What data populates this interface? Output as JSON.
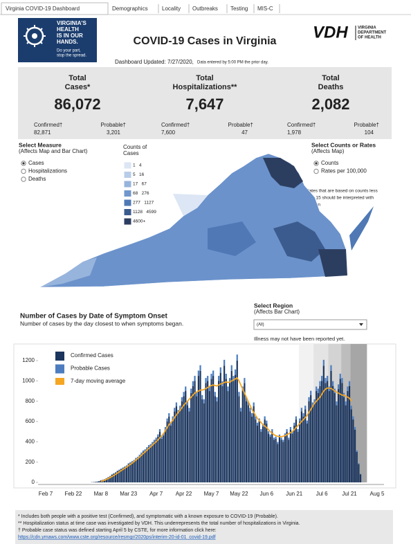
{
  "tabs": [
    "Virginia COVID-19 Dashboard",
    "Demographics",
    "Locality",
    "Outbreaks",
    "Testing",
    "MIS-C"
  ],
  "header": {
    "logo_lines": [
      "VIRGINIA'S",
      "HEALTH",
      "IS IN OUR",
      "HANDS."
    ],
    "logo_tagline": [
      "Do your part,",
      "stop the spread."
    ],
    "title": "COVID-19 Cases in Virginia",
    "vdh": "VDH",
    "vdh_name": [
      "VIRGINIA",
      "DEPARTMENT",
      "OF HEALTH"
    ],
    "updated": "Dashboard Updated: 7/27/2020,",
    "updated_note": "Data entered by 5:00 PM the prior day."
  },
  "summary": [
    {
      "title_lines": [
        "Total",
        "Cases*"
      ],
      "total": "86,072",
      "confirmed_label": "Confirmed†",
      "confirmed": "82,871",
      "probable_label": "Probable†",
      "probable": "3,201"
    },
    {
      "title_lines": [
        "Total",
        "Hospitalizations**"
      ],
      "total": "7,647",
      "confirmed_label": "Confirmed†",
      "confirmed": "7,600",
      "probable_label": "Probable†",
      "probable": "47"
    },
    {
      "title_lines": [
        "Total",
        "Deaths"
      ],
      "total": "2,082",
      "confirmed_label": "Confirmed†",
      "confirmed": "1,978",
      "probable_label": "Probable†",
      "probable": "104"
    }
  ],
  "measure": {
    "title": "Select Measure",
    "subtitle": "(Affects Map and Bar Chart)",
    "options": [
      "Cases",
      "Hospitalizations",
      "Deaths"
    ],
    "selected": 0
  },
  "rate": {
    "title": "Select Counts or Rates",
    "subtitle": "(Affects Map)",
    "options": [
      "Counts",
      "Rates per 100,000"
    ],
    "selected": 0,
    "note_lines": [
      "Rates that are based on counts less",
      "than 15 should be interpreted with",
      "caution"
    ]
  },
  "map_legend": {
    "title_lines": [
      "Counts of",
      "Cases"
    ],
    "bins": [
      {
        "label": "1   4",
        "color": "#dce6f4"
      },
      {
        "label": "5   16",
        "color": "#b9cde9"
      },
      {
        "label": "17   67",
        "color": "#97b4dc"
      },
      {
        "label": "68   276",
        "color": "#7197cc"
      },
      {
        "label": "277   1127",
        "color": "#4f78b5"
      },
      {
        "label": "1128   4599",
        "color": "#3b5b8e"
      },
      {
        "label": "4600+",
        "color": "#2c3e60"
      }
    ]
  },
  "region": {
    "title": "Select Region",
    "subtitle": "(Affects Bar Chart)",
    "value": "(All)"
  },
  "chart_data": {
    "type": "bar",
    "stacked": true,
    "title": "Number of Cases by Date of Symptom Onset",
    "subtitle": "Number of cases by the day closest to when symptoms began.",
    "annotation": "Illness may not have been reported yet.",
    "categories": [
      "Feb 7",
      null,
      null,
      null,
      null,
      null,
      null,
      null,
      null,
      null,
      null,
      null,
      null,
      null,
      null,
      "Feb 22",
      null,
      null,
      null,
      null,
      null,
      null,
      null,
      null,
      null,
      null,
      null,
      null,
      null,
      null,
      "Mar 8",
      null,
      null,
      null,
      null,
      null,
      null,
      null,
      null,
      null,
      null,
      null,
      null,
      null,
      null,
      "Mar 23",
      null,
      null,
      null,
      null,
      null,
      null,
      null,
      null,
      null,
      null,
      null,
      null,
      null,
      null,
      "Apr 7",
      null,
      null,
      null,
      null,
      null,
      null,
      null,
      null,
      null,
      null,
      null,
      null,
      null,
      null,
      "Apr 22",
      null,
      null,
      null,
      null,
      null,
      null,
      null,
      null,
      null,
      null,
      null,
      null,
      null,
      null,
      "May 7",
      null,
      null,
      null,
      null,
      null,
      null,
      null,
      null,
      null,
      null,
      null,
      null,
      null,
      null,
      "May 22",
      null,
      null,
      null,
      null,
      null,
      null,
      null,
      null,
      null,
      null,
      null,
      null,
      null,
      null,
      "Jun 6",
      null,
      null,
      null,
      null,
      null,
      null,
      null,
      null,
      null,
      null,
      null,
      null,
      null,
      null,
      "Jun 21",
      null,
      null,
      null,
      null,
      null,
      null,
      null,
      null,
      null,
      null,
      null,
      null,
      null,
      null,
      "Jul 6",
      null,
      null,
      null,
      null,
      null,
      null,
      null,
      null,
      null,
      null,
      null,
      null,
      null,
      null,
      "Jul 21",
      null,
      null,
      null,
      null,
      null,
      null,
      null,
      null,
      null,
      null,
      null,
      null,
      null,
      null,
      "Aug 5"
    ],
    "series": [
      {
        "name": "Confirmed Cases",
        "color": "#1b355e",
        "values": [
          0,
          0,
          0,
          0,
          0,
          0,
          0,
          0,
          0,
          0,
          0,
          0,
          0,
          0,
          0,
          0,
          0,
          0,
          0,
          0,
          0,
          0,
          0,
          0,
          0,
          2,
          3,
          5,
          8,
          12,
          20,
          25,
          30,
          40,
          50,
          60,
          75,
          85,
          95,
          110,
          120,
          130,
          140,
          150,
          160,
          180,
          190,
          200,
          210,
          230,
          240,
          260,
          280,
          300,
          310,
          330,
          350,
          360,
          380,
          400,
          420,
          450,
          500,
          430,
          460,
          520,
          600,
          650,
          560,
          620,
          700,
          750,
          680,
          720,
          800,
          850,
          900,
          760,
          700,
          880,
          950,
          1000,
          850,
          1050,
          1100,
          820,
          780,
          980,
          1000,
          900,
          1020,
          1050,
          850,
          800,
          1000,
          1080,
          950,
          1150,
          1020,
          900,
          980,
          1100,
          1000,
          1060,
          1200,
          850,
          700,
          900,
          980,
          800,
          760,
          700,
          650,
          750,
          620,
          560,
          600,
          500,
          550,
          620,
          580,
          480,
          450,
          500,
          420,
          430,
          380,
          450,
          420,
          400,
          460,
          500,
          420,
          520,
          480,
          560,
          620,
          500,
          600,
          700,
          650,
          720,
          580,
          800,
          860,
          750,
          780,
          900,
          880,
          950,
          1000,
          1150,
          980,
          1000,
          900,
          1100,
          950,
          880,
          760,
          920,
          1020,
          980,
          840,
          760,
          900,
          950,
          720,
          620,
          520,
          300,
          180,
          80,
          null,
          null,
          null,
          null,
          null,
          null,
          null,
          null,
          null
        ]
      },
      {
        "name": "Probable Cases",
        "color": "#4d7dbf",
        "values": [
          0,
          0,
          0,
          0,
          0,
          0,
          0,
          0,
          0,
          0,
          0,
          0,
          0,
          0,
          0,
          0,
          0,
          0,
          0,
          0,
          0,
          0,
          0,
          0,
          0,
          0,
          0,
          0,
          0,
          0,
          1,
          1,
          2,
          2,
          3,
          3,
          4,
          5,
          5,
          6,
          6,
          7,
          7,
          8,
          8,
          9,
          10,
          10,
          11,
          12,
          12,
          13,
          14,
          15,
          16,
          17,
          18,
          18,
          19,
          20,
          21,
          23,
          25,
          22,
          23,
          26,
          30,
          32,
          28,
          31,
          35,
          38,
          34,
          36,
          40,
          42,
          45,
          38,
          35,
          44,
          48,
          50,
          42,
          52,
          55,
          41,
          39,
          49,
          50,
          45,
          51,
          52,
          42,
          40,
          50,
          54,
          48,
          58,
          51,
          45,
          49,
          55,
          50,
          53,
          60,
          42,
          35,
          45,
          49,
          40,
          38,
          35,
          32,
          38,
          31,
          28,
          30,
          25,
          28,
          31,
          29,
          24,
          22,
          25,
          21,
          21,
          19,
          22,
          21,
          20,
          23,
          25,
          21,
          26,
          24,
          28,
          31,
          25,
          30,
          35,
          32,
          36,
          29,
          40,
          43,
          38,
          39,
          45,
          44,
          48,
          50,
          58,
          49,
          50,
          45,
          55,
          48,
          44,
          38,
          46,
          51,
          49,
          42,
          38,
          45,
          48,
          36,
          31,
          26,
          15,
          9,
          4,
          null,
          null,
          null,
          null,
          null,
          null,
          null,
          null,
          null
        ]
      },
      {
        "name": "7-day moving average",
        "type": "line",
        "color": "#f5a623",
        "values": [
          null,
          null,
          null,
          null,
          null,
          null,
          null,
          null,
          null,
          null,
          null,
          null,
          null,
          null,
          null,
          null,
          null,
          null,
          null,
          null,
          null,
          null,
          null,
          null,
          null,
          null,
          null,
          null,
          null,
          null,
          10,
          15,
          22,
          30,
          38,
          48,
          58,
          68,
          80,
          92,
          104,
          116,
          128,
          140,
          152,
          165,
          178,
          190,
          205,
          220,
          235,
          250,
          268,
          285,
          300,
          318,
          335,
          350,
          368,
          385,
          400,
          420,
          440,
          460,
          480,
          510,
          540,
          570,
          590,
          610,
          640,
          665,
          690,
          710,
          735,
          760,
          780,
          800,
          820,
          840,
          860,
          880,
          890,
          900,
          910,
          910,
          915,
          925,
          935,
          945,
          955,
          960,
          955,
          950,
          960,
          970,
          975,
          985,
          990,
          985,
          990,
          1000,
          1010,
          1020,
          1030,
          1000,
          960,
          920,
          880,
          840,
          800,
          760,
          720,
          690,
          660,
          630,
          610,
          590,
          570,
          555,
          540,
          520,
          500,
          485,
          470,
          460,
          455,
          450,
          450,
          455,
          460,
          470,
          480,
          490,
          500,
          520,
          540,
          560,
          580,
          600,
          620,
          640,
          660,
          690,
          720,
          750,
          780,
          800,
          820,
          840,
          870,
          900,
          920,
          930,
          930,
          925,
          915,
          900,
          890,
          880,
          870,
          860,
          860,
          850,
          840,
          830,
          800,
          null,
          null,
          null,
          null,
          null,
          null,
          null,
          null,
          null,
          null,
          null,
          null,
          null,
          null
        ]
      }
    ],
    "ylim": [
      0,
      1330
    ],
    "yticks": [
      0,
      200,
      400,
      600,
      800,
      1000,
      1200
    ]
  },
  "footnotes": [
    "* Includes both people with a positive test (Confirmed), and symptomatic with a known exposure to COVID-19 (Probable).",
    "** Hospitalization status at time case was investigated by VDH. This underrepresents the total number of hospitalizations in Virginia.",
    "† Probable case status was defined starting April 5 by CSTE, for more information click here:"
  ],
  "link": "https://cdn.ymaws.com/www.cste.org/resource/resmgr/2020ps/interim-20-id-01_covid-19.pdf"
}
